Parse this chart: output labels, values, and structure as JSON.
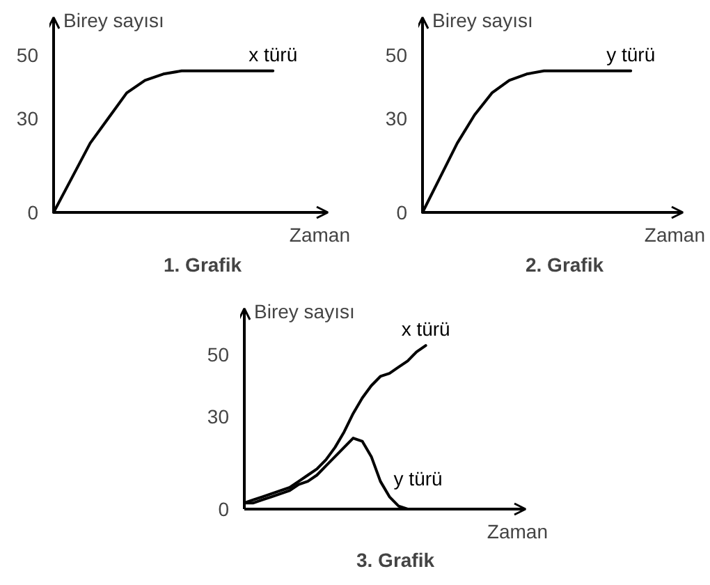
{
  "chart_data": [
    {
      "type": "line",
      "title": "1. Grafik",
      "xlabel": "Zaman",
      "ylabel": "Birey sayısı",
      "categories": [
        null,
        null,
        null,
        null,
        null,
        null,
        null,
        null,
        null,
        null,
        null,
        null,
        null,
        null,
        null,
        null
      ],
      "ylim": [
        0,
        62
      ],
      "yticks": [
        0,
        30,
        50
      ],
      "tick_labels": "y",
      "series": [
        {
          "name": "x türü",
          "color": "#000000",
          "values": [
            0,
            11,
            22,
            30,
            38,
            42,
            44,
            45,
            45,
            45,
            45,
            45,
            45,
            null,
            null,
            null
          ]
        }
      ]
    },
    {
      "type": "line",
      "title": "2. Grafik",
      "xlabel": "Zaman",
      "ylabel": "Birey sayısı",
      "categories": [
        null,
        null,
        null,
        null,
        null,
        null,
        null,
        null,
        null,
        null,
        null,
        null,
        null,
        null,
        null,
        null
      ],
      "ylim": [
        0,
        62
      ],
      "yticks": [
        0,
        30,
        50
      ],
      "tick_labels": "y",
      "series": [
        {
          "name": "y türü",
          "color": "#000000",
          "values": [
            0,
            11,
            22,
            31,
            38,
            42,
            44,
            45,
            45,
            45,
            45,
            45,
            45,
            null,
            null,
            null
          ]
        }
      ]
    },
    {
      "type": "line",
      "title": "3. Grafik",
      "xlabel": "Zaman",
      "ylabel": "Birey sayısı",
      "categories": [
        null,
        null,
        null,
        null,
        null,
        null,
        null,
        null,
        null,
        null,
        null,
        null,
        null,
        null,
        null,
        null,
        null,
        null,
        null,
        null,
        null,
        null,
        null,
        null,
        null,
        null,
        null,
        null,
        null,
        null,
        null,
        null
      ],
      "ylim": [
        0,
        65
      ],
      "yticks": [
        0,
        30,
        50
      ],
      "tick_labels": "y",
      "series": [
        {
          "name": "x türü",
          "color": "#000000",
          "values": [
            2,
            3,
            4,
            5,
            6,
            7,
            9,
            11,
            13,
            16,
            20,
            25,
            31,
            36,
            40,
            43,
            44,
            46,
            48,
            51,
            53,
            null,
            null,
            null,
            null,
            null,
            null,
            null,
            null,
            null,
            null,
            null
          ]
        },
        {
          "name": "y türü",
          "color": "#000000",
          "values": [
            2,
            2,
            3,
            4,
            5,
            6,
            8,
            9,
            11,
            14,
            17,
            20,
            23,
            22,
            17,
            9,
            4,
            1,
            0,
            null,
            null,
            null,
            null,
            null,
            null,
            null,
            null,
            null,
            null,
            null,
            null,
            null
          ]
        }
      ]
    }
  ]
}
